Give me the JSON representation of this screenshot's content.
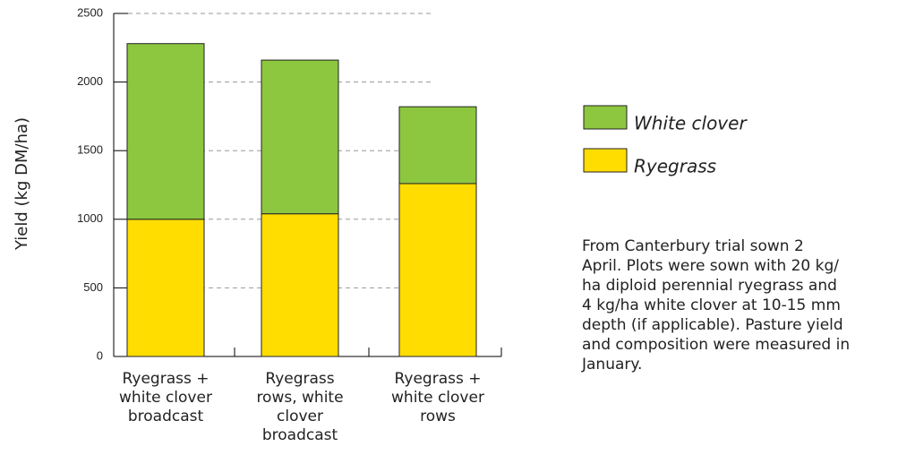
{
  "chart_data": {
    "type": "stacked-bar",
    "y_label": "Yield (kg DM/ha)",
    "categories": [
      [
        "Ryegrass +",
        "white clover",
        "broadcast"
      ],
      [
        "Ryegrass",
        "rows, white",
        "clover",
        "broadcast"
      ],
      [
        "Ryegrass +",
        "white clover",
        "rows"
      ]
    ],
    "series": [
      {
        "name": "Ryegrass",
        "color": "#ffdd00",
        "values": [
          1000,
          1040,
          1260
        ]
      },
      {
        "name": "White clover",
        "color": "#8dc63f",
        "values": [
          1280,
          1120,
          560
        ]
      }
    ],
    "ylim": [
      0,
      2500
    ],
    "yticks": [
      0,
      500,
      1000,
      1500,
      2000,
      2500
    ],
    "grid": true,
    "annotation": [
      "From Canterbury trial sown 2",
      "April. Plots were sown with 20 kg/",
      "ha diploid perennial ryegrass and",
      "4 kg/ha white clover at 10-15 mm",
      "depth (if applicable). Pasture yield",
      "and composition were measured in",
      "January."
    ]
  }
}
